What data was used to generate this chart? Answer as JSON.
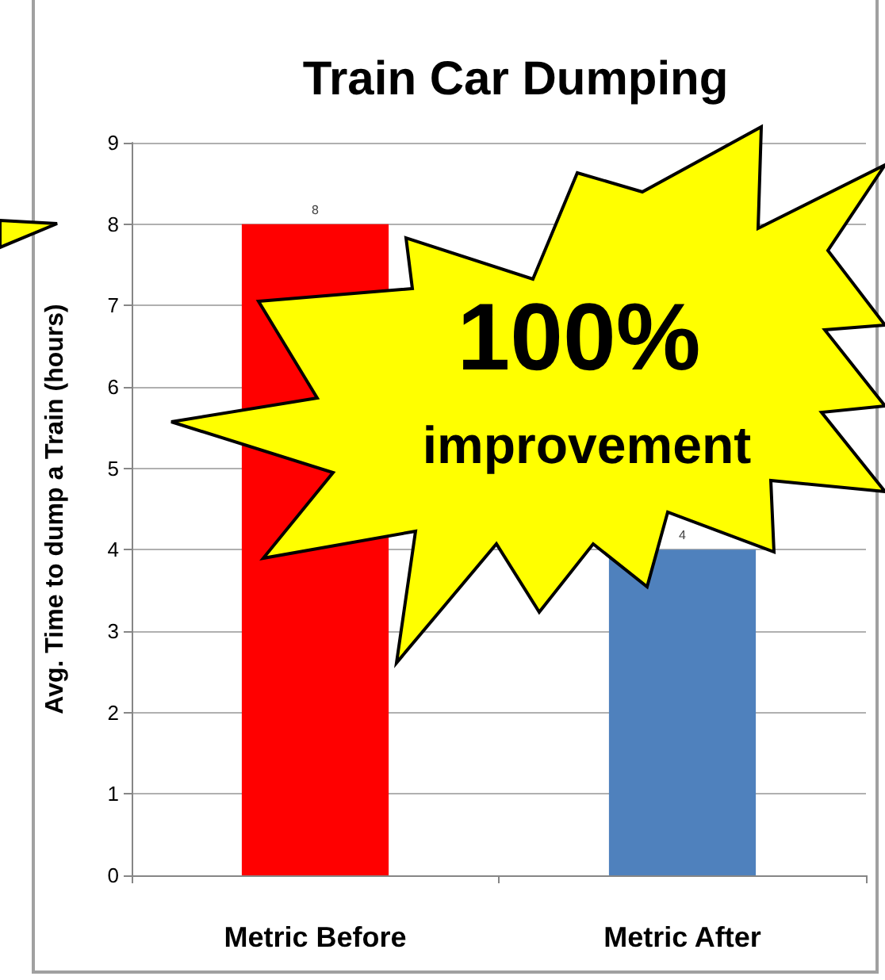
{
  "chart_data": {
    "type": "bar",
    "title": "Train Car Dumping",
    "ylabel": "Avg. Time to dump a Train (hours)",
    "categories": [
      "Metric Before",
      "Metric After"
    ],
    "values": [
      8,
      4
    ],
    "colors": [
      "#ff0000",
      "#4f81bd"
    ],
    "ylim": [
      0,
      9
    ],
    "yticks": [
      0,
      1,
      2,
      3,
      4,
      5,
      6,
      7,
      8,
      9
    ],
    "grid": "y",
    "data_labels": true,
    "annotations": [
      "100%",
      "improvement"
    ]
  }
}
